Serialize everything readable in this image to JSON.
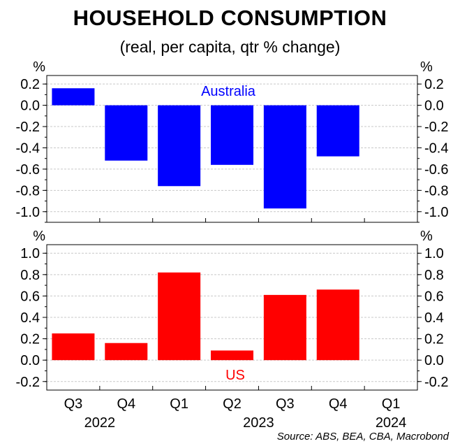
{
  "header": {
    "title": "HOUSEHOLD CONSUMPTION",
    "subtitle": "(real, per capita, qtr % change)"
  },
  "footer": {
    "source": "Source: ABS, BEA, CBA, Macrobond"
  },
  "colors": {
    "australia": "#0000ff",
    "us": "#ff0000",
    "grid": "#c8c8c8"
  },
  "chart_data": {
    "type": "bar",
    "categories": [
      "Q3",
      "Q4",
      "Q1",
      "Q2",
      "Q3",
      "Q4",
      "Q1"
    ],
    "years": [
      {
        "label": "2022",
        "from": 0,
        "to": 1
      },
      {
        "label": "2023",
        "from": 2,
        "to": 5
      },
      {
        "label": "2024",
        "from": 6,
        "to": 6
      }
    ],
    "panels": [
      {
        "unit_label": "%",
        "series_label": "Australia",
        "values": [
          0.16,
          -0.52,
          -0.76,
          -0.56,
          -0.97,
          -0.48,
          null
        ],
        "ylim": [
          -1.1,
          0.28
        ],
        "yticks": [
          "0.2",
          "0.0",
          "-0.2",
          "-0.4",
          "-0.6",
          "-0.8",
          "-1.0"
        ],
        "ytick_values": [
          0.2,
          0.0,
          -0.2,
          -0.4,
          -0.6,
          -0.8,
          -1.0
        ],
        "color": "#0000ff"
      },
      {
        "unit_label": "%",
        "series_label": "US",
        "values": [
          0.25,
          0.16,
          0.82,
          0.09,
          0.61,
          0.66,
          null
        ],
        "ylim": [
          -0.28,
          1.08
        ],
        "yticks": [
          "1.0",
          "0.8",
          "0.6",
          "0.4",
          "0.2",
          "0.0",
          "-0.2"
        ],
        "ytick_values": [
          1.0,
          0.8,
          0.6,
          0.4,
          0.2,
          0.0,
          -0.2
        ],
        "color": "#ff0000"
      }
    ]
  }
}
